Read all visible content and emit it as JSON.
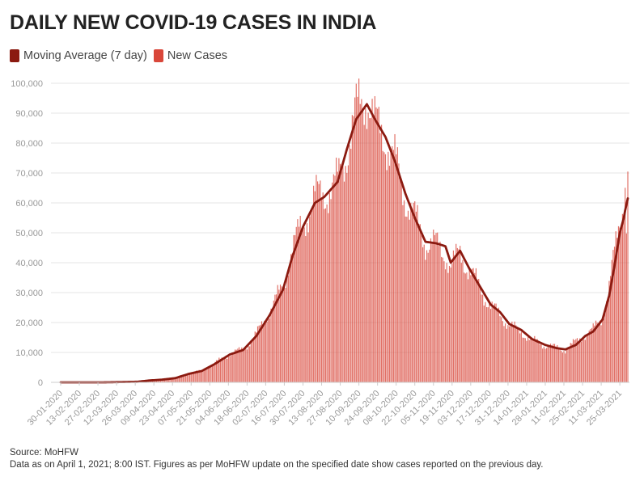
{
  "chart_data": {
    "type": "bar",
    "title": "DAILY NEW COVID-19 CASES IN INDIA",
    "legend": {
      "position": "top-left",
      "entries": [
        {
          "name": "Moving Average (7 day)",
          "color": "#8b1a10"
        },
        {
          "name": "New Cases",
          "color": "#d9473a"
        }
      ]
    },
    "colors": {
      "bar": "#d9473a",
      "line": "#8b1a10",
      "grid": "#e6e6e6",
      "axis_text": "#999999"
    },
    "grid": true,
    "ylim": [
      0,
      100000
    ],
    "y_ticks": [
      "0",
      "10,000",
      "20,000",
      "30,000",
      "40,000",
      "50,000",
      "60,000",
      "70,000",
      "80,000",
      "90,000",
      "100,000"
    ],
    "x_range": [
      "2020-01-30",
      "2021-03-31"
    ],
    "x_ticks": [
      "30-01-2020",
      "13-02-2020",
      "27-02-2020",
      "12-03-2020",
      "26-03-2020",
      "09-04-2020",
      "23-04-2020",
      "07-05-2020",
      "21-05-2020",
      "04-06-2020",
      "18-06-2020",
      "02-07-2020",
      "16-07-2020",
      "30-07-2020",
      "13-08-2020",
      "27-08-2020",
      "10-09-2020",
      "24-09-2020",
      "08-10-2020",
      "22-10-2020",
      "05-11-2020",
      "19-11-2020",
      "03-12-2020",
      "17-12-2020",
      "31-12-2020",
      "14-01-2021",
      "28-01-2021",
      "11-02-2021",
      "25-02-2021",
      "11-03-2021",
      "25-03-2021"
    ],
    "series": [
      {
        "name": "New Cases",
        "kind": "bar",
        "points": [
          [
            "2020-01-30",
            0
          ],
          [
            "2020-03-01",
            0
          ],
          [
            "2020-03-15",
            100
          ],
          [
            "2020-03-28",
            200
          ],
          [
            "2020-04-05",
            600
          ],
          [
            "2020-04-15",
            900
          ],
          [
            "2020-04-25",
            1500
          ],
          [
            "2020-05-05",
            3000
          ],
          [
            "2020-05-15",
            3900
          ],
          [
            "2020-05-25",
            6500
          ],
          [
            "2020-06-05",
            9500
          ],
          [
            "2020-06-15",
            11000
          ],
          [
            "2020-06-25",
            16000
          ],
          [
            "2020-07-05",
            24000
          ],
          [
            "2020-07-15",
            32000
          ],
          [
            "2020-07-22",
            45000
          ],
          [
            "2020-07-30",
            53000
          ],
          [
            "2020-08-08",
            62000
          ],
          [
            "2020-08-15",
            63000
          ],
          [
            "2020-08-25",
            67000
          ],
          [
            "2020-09-01",
            78000
          ],
          [
            "2020-09-08",
            90000
          ],
          [
            "2020-09-16",
            97000
          ],
          [
            "2020-09-22",
            86000
          ],
          [
            "2020-09-30",
            82000
          ],
          [
            "2020-10-07",
            74000
          ],
          [
            "2020-10-15",
            62000
          ],
          [
            "2020-10-22",
            55000
          ],
          [
            "2020-10-30",
            47000
          ],
          [
            "2020-11-07",
            46000
          ],
          [
            "2020-11-14",
            43000
          ],
          [
            "2020-11-18",
            38000
          ],
          [
            "2020-11-25",
            44000
          ],
          [
            "2020-12-02",
            37000
          ],
          [
            "2020-12-10",
            32000
          ],
          [
            "2020-12-18",
            25000
          ],
          [
            "2020-12-25",
            23000
          ],
          [
            "2021-01-01",
            19000
          ],
          [
            "2021-01-10",
            17000
          ],
          [
            "2021-01-18",
            14000
          ],
          [
            "2021-01-28",
            12500
          ],
          [
            "2021-02-05",
            11500
          ],
          [
            "2021-02-12",
            11000
          ],
          [
            "2021-02-20",
            13500
          ],
          [
            "2021-02-27",
            16000
          ],
          [
            "2021-03-05",
            17500
          ],
          [
            "2021-03-12",
            22000
          ],
          [
            "2021-03-17",
            32000
          ],
          [
            "2021-03-21",
            43000
          ],
          [
            "2021-03-25",
            54000
          ],
          [
            "2021-03-28",
            62000
          ],
          [
            "2021-03-29",
            68000
          ],
          [
            "2021-03-30",
            53000
          ],
          [
            "2021-03-31",
            72000
          ]
        ]
      },
      {
        "name": "Moving Average (7 day)",
        "kind": "line",
        "points": [
          [
            "2020-01-30",
            0
          ],
          [
            "2020-03-01",
            0
          ],
          [
            "2020-03-15",
            100
          ],
          [
            "2020-03-28",
            200
          ],
          [
            "2020-04-05",
            600
          ],
          [
            "2020-04-15",
            900
          ],
          [
            "2020-04-25",
            1400
          ],
          [
            "2020-05-05",
            2800
          ],
          [
            "2020-05-15",
            3800
          ],
          [
            "2020-05-25",
            6200
          ],
          [
            "2020-06-05",
            9300
          ],
          [
            "2020-06-15",
            10800
          ],
          [
            "2020-06-25",
            15500
          ],
          [
            "2020-07-05",
            22500
          ],
          [
            "2020-07-15",
            31000
          ],
          [
            "2020-07-22",
            42000
          ],
          [
            "2020-07-30",
            52000
          ],
          [
            "2020-08-08",
            60000
          ],
          [
            "2020-08-15",
            62000
          ],
          [
            "2020-08-25",
            67000
          ],
          [
            "2020-09-01",
            78000
          ],
          [
            "2020-09-08",
            88000
          ],
          [
            "2020-09-16",
            93000
          ],
          [
            "2020-09-22",
            88000
          ],
          [
            "2020-09-30",
            82000
          ],
          [
            "2020-10-07",
            74000
          ],
          [
            "2020-10-15",
            63000
          ],
          [
            "2020-10-22",
            55000
          ],
          [
            "2020-10-30",
            47000
          ],
          [
            "2020-11-07",
            46500
          ],
          [
            "2020-11-14",
            45500
          ],
          [
            "2020-11-18",
            40000
          ],
          [
            "2020-11-25",
            44000
          ],
          [
            "2020-12-02",
            38000
          ],
          [
            "2020-12-10",
            32000
          ],
          [
            "2020-12-18",
            26000
          ],
          [
            "2020-12-25",
            23500
          ],
          [
            "2021-01-01",
            19500
          ],
          [
            "2021-01-10",
            17500
          ],
          [
            "2021-01-18",
            14500
          ],
          [
            "2021-01-28",
            12500
          ],
          [
            "2021-02-05",
            11500
          ],
          [
            "2021-02-12",
            11000
          ],
          [
            "2021-02-20",
            12500
          ],
          [
            "2021-02-27",
            15500
          ],
          [
            "2021-03-05",
            17000
          ],
          [
            "2021-03-12",
            21000
          ],
          [
            "2021-03-17",
            29000
          ],
          [
            "2021-03-21",
            39000
          ],
          [
            "2021-03-25",
            50000
          ],
          [
            "2021-03-28",
            55000
          ],
          [
            "2021-03-29",
            57500
          ],
          [
            "2021-03-30",
            59500
          ],
          [
            "2021-03-31",
            61500
          ]
        ]
      }
    ]
  },
  "footer": {
    "source": "Source: MoHFW",
    "note": "Data as on April 1, 2021; 8:00 IST. Figures as per MoHFW update on the specified date show cases reported on the previous day."
  }
}
